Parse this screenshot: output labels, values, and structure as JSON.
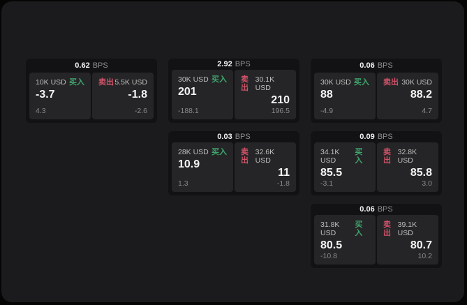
{
  "theme": {
    "page_bg": "#050505",
    "window_bg": "#1b1b1d",
    "card_bg": "#121214",
    "panel_bg": "#252527",
    "text_primary": "#f4f4f4",
    "text_secondary": "#bfbfbf",
    "text_muted": "#8a8a8a",
    "buy_color": "#3fa66d",
    "sell_color": "#cf5268"
  },
  "labels": {
    "buy": "买入",
    "sell": "卖出",
    "bps": "BPS"
  },
  "cards": [
    {
      "row": 1,
      "col": 1,
      "bps": "0.62",
      "buy": {
        "size": "10K USD",
        "price": "-3.7",
        "delta": "4.3"
      },
      "sell": {
        "size": "5.5K USD",
        "price": "-1.8",
        "delta": "-2.6"
      }
    },
    {
      "row": 1,
      "col": 2,
      "bps": "2.92",
      "buy": {
        "size": "30K USD",
        "price": "201",
        "delta": "-188.1"
      },
      "sell": {
        "size": "30.1K USD",
        "price": "210",
        "delta": "196.5"
      }
    },
    {
      "row": 1,
      "col": 3,
      "bps": "0.06",
      "buy": {
        "size": "30K USD",
        "price": "88",
        "delta": "-4.9"
      },
      "sell": {
        "size": "30K USD",
        "price": "88.2",
        "delta": "4.7"
      }
    },
    {
      "row": 2,
      "col": 2,
      "bps": "0.03",
      "buy": {
        "size": "28K USD",
        "price": "10.9",
        "delta": "1.3"
      },
      "sell": {
        "size": "32.6K USD",
        "price": "11",
        "delta": "-1.8"
      }
    },
    {
      "row": 2,
      "col": 3,
      "bps": "0.09",
      "buy": {
        "size": "34.1K USD",
        "price": "85.5",
        "delta": "-3.1"
      },
      "sell": {
        "size": "32.8K USD",
        "price": "85.8",
        "delta": "3.0"
      }
    },
    {
      "row": 3,
      "col": 3,
      "bps": "0.06",
      "buy": {
        "size": "31.8K USD",
        "price": "80.5",
        "delta": "-10.8"
      },
      "sell": {
        "size": "39.1K USD",
        "price": "80.7",
        "delta": "10.2"
      }
    }
  ]
}
